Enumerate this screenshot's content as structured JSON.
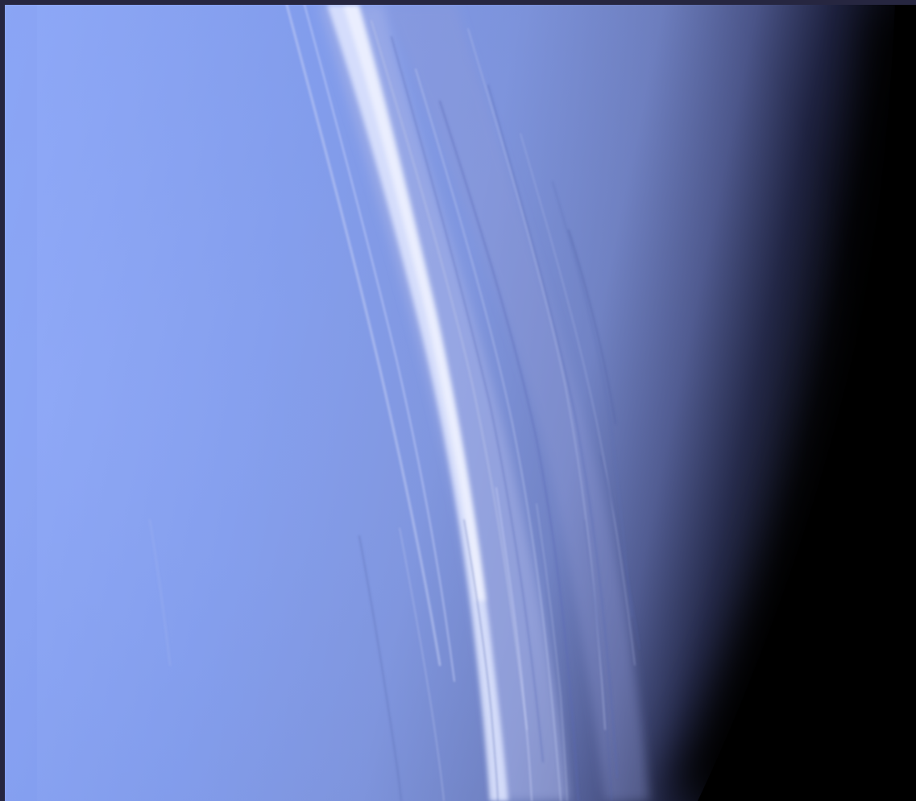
{
  "image": {
    "subject": "planet-limb-with-cloud-streaks",
    "text": ""
  },
  "colors": {
    "frame": "#262640",
    "sky_left": "#8aa4f4",
    "sky_mid": "#7f98e6",
    "limb_dark": "#2a3058",
    "space": "#000000",
    "cloud_highlight": "#e6ecff",
    "cloud_shadow": "#5a6db8"
  }
}
